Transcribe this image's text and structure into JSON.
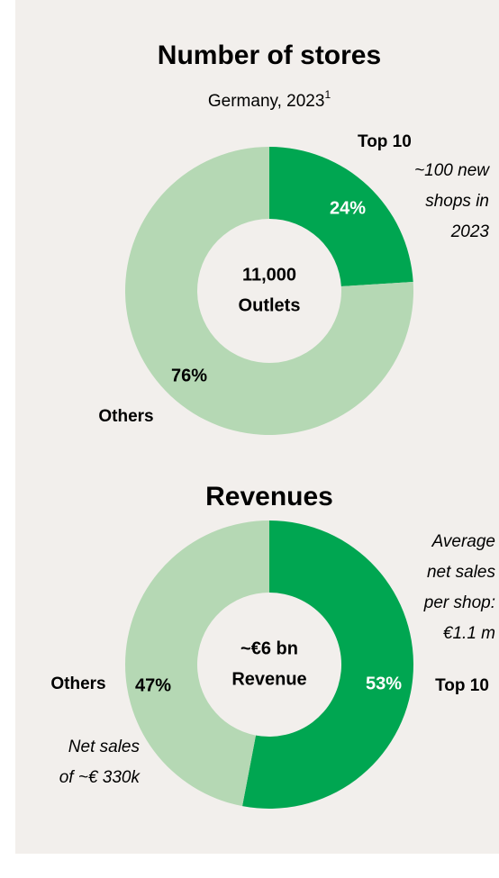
{
  "charts": [
    {
      "type": "pie",
      "title": "Number of stores",
      "subtitle": "Germany, 2023",
      "footnote_marker": "1",
      "categories": [
        "Top 10",
        "Others"
      ],
      "values": [
        24,
        76
      ],
      "value_labels": [
        "24%",
        "76%"
      ],
      "colors": [
        "#00a651",
        "#b5d8b4"
      ],
      "center_text": [
        "11,000",
        "Outlets"
      ],
      "annotations": [
        [
          "~100 new",
          "shops in",
          "2023"
        ]
      ]
    },
    {
      "type": "pie",
      "title": "Revenues",
      "categories": [
        "Top 10",
        "Others"
      ],
      "values": [
        53,
        47
      ],
      "value_labels": [
        "53%",
        "47%"
      ],
      "colors": [
        "#00a651",
        "#b5d8b4"
      ],
      "center_text": [
        "~€6 bn",
        "Revenue"
      ],
      "annotations": [
        [
          "Average",
          "net sales",
          "per shop:",
          "€1.1 m"
        ],
        [
          "Net sales",
          "of ~€ 330k"
        ]
      ]
    }
  ]
}
